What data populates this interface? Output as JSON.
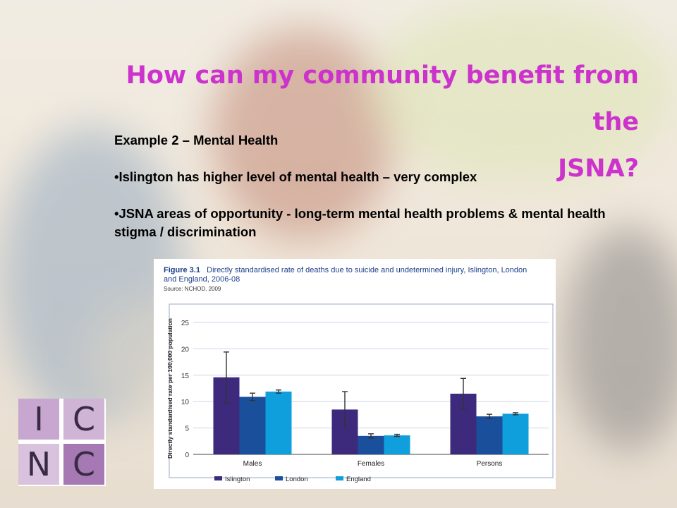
{
  "slide": {
    "title_line1": "How can my community benefit from the",
    "title_line2": "JSNA?",
    "example_heading": "Example 2 – Mental Health",
    "bullets": [
      "Islington has higher level of mental health – very complex",
      "JSNA  areas of opportunity -  long-term mental health problems & mental health stigma / discrimination"
    ]
  },
  "figure": {
    "label": "Figure 3.1",
    "title": "Directly standardised rate of deaths due to suicide and undetermined injury, Islington, London and England, 2006-08",
    "source": "Source: NCHOD, 2009"
  },
  "logo": {
    "letters": [
      "I",
      "C",
      "N",
      "C"
    ]
  },
  "colors": {
    "title": "#cc33cc",
    "islington": "#3d2a7d",
    "london": "#1a4f9c",
    "england": "#0f9fdc"
  },
  "chart_data": {
    "type": "bar",
    "categories": [
      "Males",
      "Females",
      "Persons"
    ],
    "series": [
      {
        "name": "Islington",
        "values": [
          14.6,
          8.5,
          11.5
        ],
        "ci_low": [
          9.7,
          5.1,
          8.6
        ],
        "ci_high": [
          19.4,
          11.9,
          14.4
        ]
      },
      {
        "name": "London",
        "values": [
          10.9,
          3.5,
          7.2
        ],
        "ci_low": [
          10.2,
          3.1,
          6.8
        ],
        "ci_high": [
          11.6,
          3.9,
          7.6
        ]
      },
      {
        "name": "England",
        "values": [
          11.9,
          3.6,
          7.7
        ],
        "ci_low": [
          11.6,
          3.4,
          7.5
        ],
        "ci_high": [
          12.2,
          3.8,
          7.9
        ]
      }
    ],
    "ylabel": "Directly standardised rate per 100,000 population",
    "ylim": [
      0,
      25
    ],
    "yticks": [
      0,
      5,
      10,
      15,
      20,
      25
    ],
    "grid": true,
    "legend": "bottom"
  }
}
